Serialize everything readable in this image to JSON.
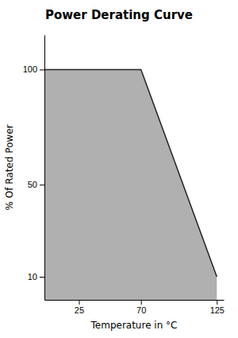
{
  "chart_data": {
    "type": "area",
    "title": "Power Derating Curve",
    "x_label": "Temperature in °C",
    "y_label": "% Of Rated Power",
    "x": [
      0,
      70,
      125
    ],
    "values": [
      100,
      100,
      10
    ],
    "color": "#b0b0b0",
    "xlim": [
      0,
      130
    ],
    "ylim": [
      0,
      115
    ],
    "xticks": [
      25,
      70,
      125
    ],
    "yticks": [
      10,
      50,
      100
    ],
    "grid": false
  }
}
